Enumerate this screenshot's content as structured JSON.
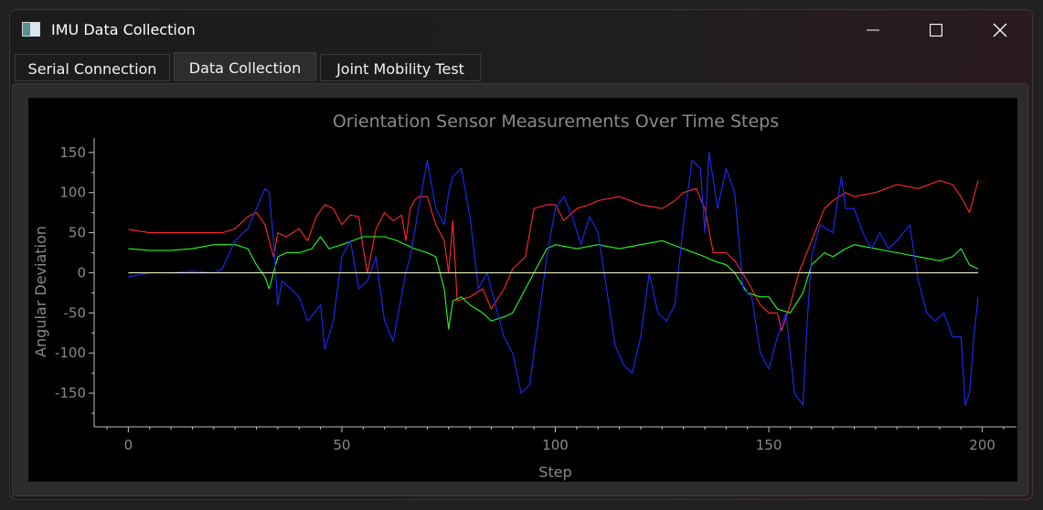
{
  "window": {
    "title": "IMU Data Collection",
    "controls": [
      "minimize",
      "maximize",
      "close"
    ]
  },
  "tabs": [
    {
      "label": "Serial Connection",
      "active": false
    },
    {
      "label": "Data Collection",
      "active": true
    },
    {
      "label": "Joint Mobility Test",
      "active": false
    }
  ],
  "colors": {
    "plot_bg": "#000000",
    "axis": "#bfbfbf",
    "text": "#8a8a8a",
    "red": "#ff2a2a",
    "green": "#22ff22",
    "blue": "#1a2cff",
    "zero_line": "#ffffc8"
  },
  "chart_data": {
    "type": "line",
    "title": "Orientation Sensor Measurements Over Time Steps",
    "xlabel": "Step",
    "ylabel": "Angular Deviation",
    "xlim": [
      -8,
      208
    ],
    "ylim": [
      -192,
      168
    ],
    "xticks": [
      0,
      50,
      100,
      150,
      200
    ],
    "yticks": [
      150,
      100,
      50,
      0,
      -50,
      -100,
      -150
    ],
    "grid": false,
    "legend": "none",
    "series": [
      {
        "color": "#ff2a2a",
        "x": [
          0,
          5,
          10,
          15,
          20,
          22,
          25,
          28,
          30,
          32,
          33,
          34,
          35,
          37,
          40,
          42,
          44,
          46,
          48,
          50,
          52,
          54,
          55,
          56,
          58,
          60,
          62,
          64,
          65,
          66,
          67,
          68,
          70,
          72,
          74,
          75,
          76,
          77,
          80,
          83,
          85,
          88,
          90,
          93,
          95,
          98,
          100,
          102,
          105,
          108,
          110,
          115,
          120,
          125,
          128,
          130,
          133,
          135,
          137,
          140,
          142,
          145,
          148,
          150,
          152,
          153,
          155,
          157,
          160,
          163,
          165,
          168,
          170,
          175,
          180,
          185,
          190,
          193,
          195,
          197,
          199
        ],
        "y": [
          54,
          50,
          50,
          50,
          50,
          50,
          55,
          70,
          75,
          60,
          40,
          20,
          50,
          45,
          55,
          40,
          70,
          85,
          80,
          60,
          72,
          70,
          30,
          0,
          55,
          75,
          65,
          72,
          40,
          80,
          90,
          95,
          95,
          60,
          40,
          0,
          65,
          -35,
          -30,
          -20,
          -45,
          -20,
          5,
          20,
          80,
          85,
          85,
          65,
          80,
          85,
          90,
          95,
          85,
          80,
          90,
          100,
          105,
          80,
          25,
          25,
          15,
          -10,
          -40,
          -50,
          -50,
          -72,
          -40,
          0,
          40,
          80,
          90,
          100,
          95,
          100,
          110,
          105,
          115,
          110,
          95,
          75,
          115
        ]
      },
      {
        "color": "#22ff22",
        "x": [
          0,
          5,
          10,
          15,
          20,
          25,
          28,
          30,
          32,
          33,
          35,
          37,
          40,
          43,
          45,
          47,
          50,
          55,
          60,
          63,
          65,
          67,
          70,
          72,
          74,
          75,
          76,
          78,
          80,
          83,
          85,
          88,
          90,
          92,
          95,
          98,
          100,
          105,
          110,
          115,
          120,
          125,
          130,
          135,
          137,
          140,
          142,
          145,
          148,
          150,
          152,
          155,
          158,
          160,
          163,
          165,
          168,
          170,
          175,
          180,
          185,
          190,
          193,
          195,
          197,
          199
        ],
        "y": [
          30,
          28,
          28,
          30,
          35,
          35,
          30,
          10,
          -5,
          -20,
          20,
          25,
          25,
          30,
          45,
          30,
          35,
          45,
          45,
          40,
          35,
          30,
          25,
          20,
          -20,
          -70,
          -35,
          -30,
          -40,
          -50,
          -60,
          -55,
          -50,
          -30,
          0,
          30,
          35,
          30,
          35,
          30,
          35,
          40,
          30,
          20,
          15,
          10,
          0,
          -25,
          -30,
          -30,
          -45,
          -50,
          -25,
          10,
          25,
          20,
          30,
          35,
          30,
          25,
          20,
          15,
          20,
          30,
          10,
          5
        ]
      },
      {
        "color": "#1a2cff",
        "x": [
          0,
          5,
          10,
          15,
          20,
          22,
          25,
          28,
          30,
          32,
          33,
          34,
          35,
          36,
          38,
          40,
          42,
          45,
          46,
          48,
          50,
          52,
          54,
          56,
          58,
          60,
          62,
          65,
          66,
          68,
          70,
          72,
          74,
          75,
          76,
          78,
          80,
          82,
          84,
          86,
          88,
          90,
          92,
          94,
          96,
          98,
          100,
          102,
          104,
          106,
          108,
          110,
          112,
          114,
          116,
          118,
          120,
          122,
          124,
          126,
          128,
          130,
          132,
          134,
          135,
          136,
          138,
          140,
          142,
          144,
          146,
          148,
          150,
          152,
          154,
          156,
          158,
          159,
          160,
          162,
          165,
          167,
          168,
          170,
          172,
          174,
          176,
          178,
          180,
          183,
          185,
          187,
          189,
          191,
          193,
          195,
          196,
          197,
          198,
          199
        ],
        "y": [
          -5,
          0,
          0,
          2,
          0,
          5,
          40,
          55,
          80,
          105,
          100,
          40,
          -40,
          -10,
          -20,
          -30,
          -60,
          -40,
          -95,
          -60,
          20,
          40,
          -20,
          -10,
          20,
          -60,
          -85,
          0,
          20,
          80,
          140,
          80,
          60,
          100,
          120,
          130,
          70,
          -20,
          0,
          -40,
          -80,
          -100,
          -150,
          -140,
          -60,
          20,
          80,
          95,
          70,
          35,
          70,
          50,
          -20,
          -90,
          -115,
          -125,
          -80,
          0,
          -50,
          -60,
          -40,
          60,
          140,
          130,
          50,
          150,
          80,
          130,
          100,
          -20,
          -30,
          -100,
          -120,
          -80,
          -50,
          -150,
          -165,
          -60,
          20,
          60,
          50,
          120,
          80,
          80,
          50,
          30,
          50,
          30,
          40,
          60,
          -10,
          -50,
          -60,
          -50,
          -80,
          -80,
          -165,
          -150,
          -80,
          -30
        ]
      },
      {
        "color": "#ffffc8",
        "x": [
          0,
          199
        ],
        "y": [
          0,
          0
        ]
      }
    ]
  }
}
